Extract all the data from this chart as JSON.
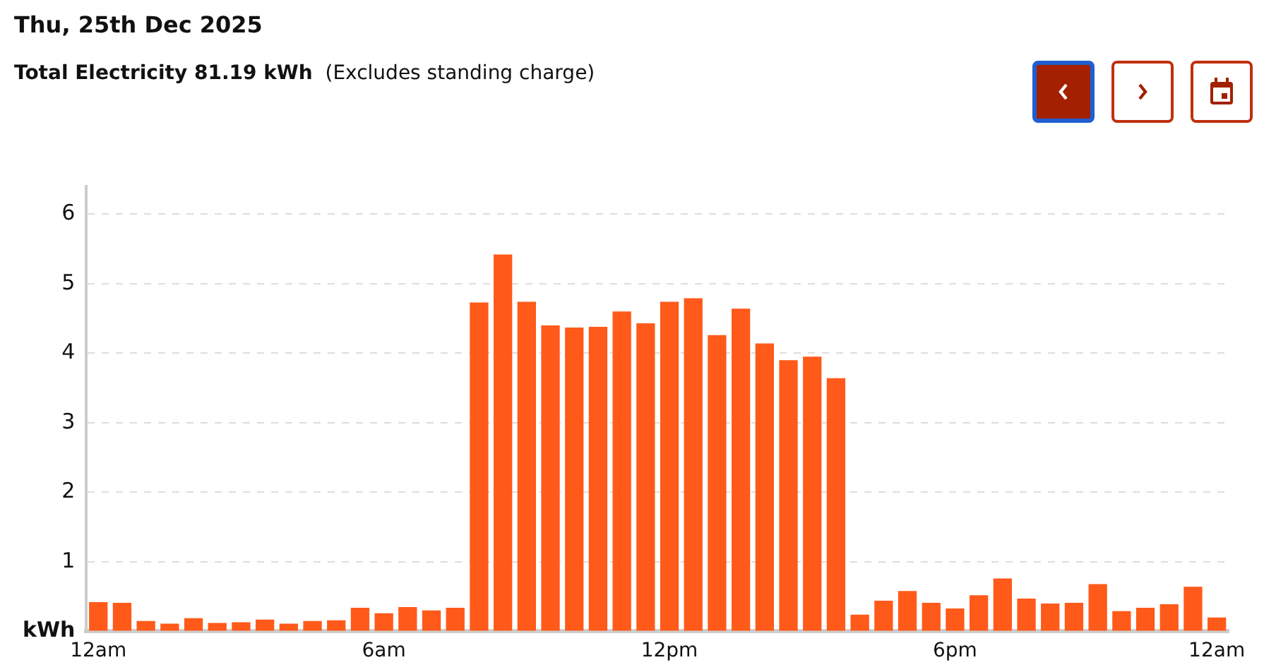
{
  "chart_data": {
    "type": "bar",
    "title": "Thu, 25th Dec 2025",
    "subtitle": "Total Electricity 81.19 kWh",
    "annotations": [
      "(Excludes standing charge)"
    ],
    "categories": [
      "12am",
      null,
      null,
      null,
      null,
      null,
      null,
      null,
      null,
      null,
      null,
      null,
      "6am",
      null,
      null,
      null,
      null,
      null,
      null,
      null,
      null,
      null,
      null,
      null,
      "12pm",
      null,
      null,
      null,
      null,
      null,
      null,
      null,
      null,
      null,
      null,
      null,
      "6pm",
      null,
      null,
      null,
      null,
      null,
      null,
      null,
      null,
      null,
      null,
      "12am"
    ],
    "values": [
      0.42,
      0.41,
      0.15,
      0.11,
      0.19,
      0.12,
      0.13,
      0.17,
      0.11,
      0.15,
      0.16,
      0.34,
      0.26,
      0.35,
      0.3,
      0.34,
      4.73,
      5.42,
      4.74,
      4.4,
      4.37,
      4.38,
      4.6,
      4.43,
      4.74,
      4.79,
      4.26,
      4.64,
      4.14,
      3.9,
      3.95,
      3.64,
      0.24,
      0.44,
      0.58,
      0.41,
      0.33,
      0.52,
      0.76,
      0.47,
      0.4,
      0.41,
      0.68,
      0.29,
      0.34,
      0.39,
      0.64,
      0.2
    ],
    "color": "#ff5a1a",
    "ylim": [
      0,
      6.4
    ],
    "yticks": [
      {
        "value": 0,
        "label": "kWh"
      },
      1,
      2,
      3,
      4,
      5,
      6
    ],
    "grid": "y",
    "legend": false
  }
}
